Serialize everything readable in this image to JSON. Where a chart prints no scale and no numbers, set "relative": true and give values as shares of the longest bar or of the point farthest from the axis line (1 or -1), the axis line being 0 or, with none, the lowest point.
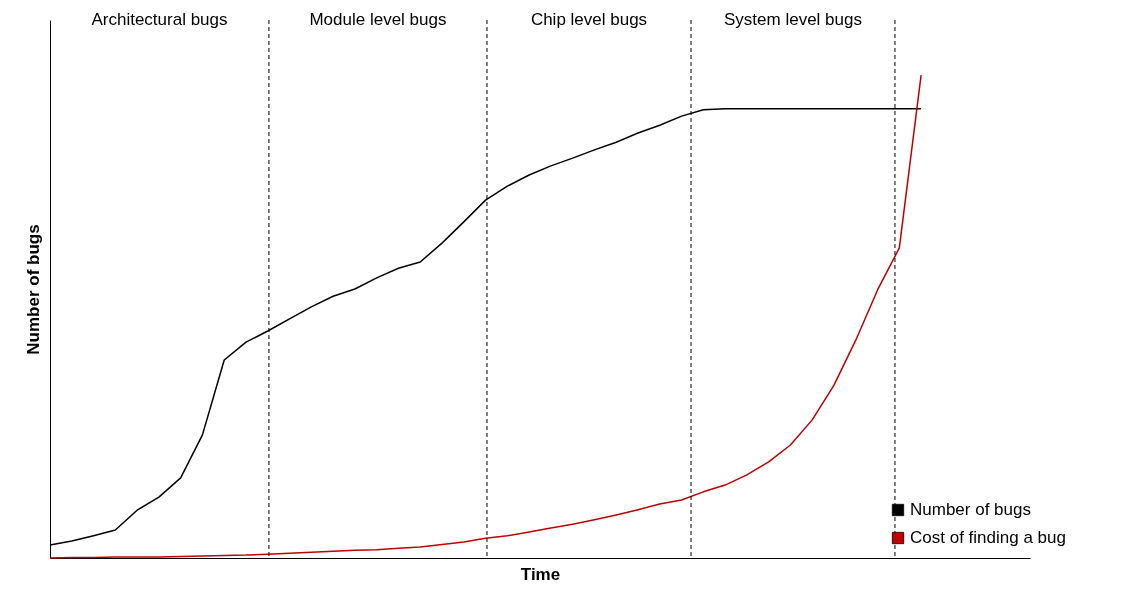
{
  "chart_data": {
    "type": "line",
    "relative": true,
    "xlabel": "Time",
    "ylabel": "Number of bugs",
    "categories": [
      null,
      null,
      null,
      null,
      null,
      null,
      null,
      null,
      null,
      null,
      null,
      null,
      null,
      null,
      null,
      null,
      null,
      null,
      null,
      null,
      null,
      null,
      null,
      null,
      null,
      null,
      null,
      null,
      null,
      null,
      null,
      null,
      null,
      null,
      null,
      null,
      null,
      null,
      null,
      null,
      null,
      null,
      null,
      null,
      null,
      null
    ],
    "series": [
      {
        "name": "Number of bugs",
        "color": "#000000",
        "values": [
          0.027,
          0.035,
          0.046,
          0.058,
          0.099,
          0.126,
          0.166,
          0.255,
          0.41,
          0.447,
          0.47,
          0.495,
          0.52,
          0.542,
          0.557,
          0.58,
          0.6,
          0.613,
          0.652,
          0.696,
          0.741,
          0.77,
          0.793,
          0.812,
          0.828,
          0.845,
          0.861,
          0.88,
          0.896,
          0.915,
          0.928,
          0.93,
          0.93,
          0.93,
          0.93,
          0.93,
          0.93,
          0.93,
          0.93,
          0.93,
          0.93,
          null,
          null,
          null,
          null,
          null
        ]
      },
      {
        "name": "Cost of finding a bug",
        "color": "#c00000",
        "values": [
          0,
          0.001,
          0.001,
          0.002,
          0.002,
          0.002,
          0.003,
          0.004,
          0.005,
          0.006,
          0.008,
          0.01,
          0.012,
          0.014,
          0.016,
          0.017,
          0.02,
          0.023,
          0.028,
          0.033,
          0.041,
          0.046,
          0.054,
          0.062,
          0.07,
          0.079,
          0.089,
          0.1,
          0.112,
          0.12,
          0.137,
          0.151,
          0.172,
          0.199,
          0.234,
          0.286,
          0.358,
          0.451,
          0.555,
          0.642,
          1,
          null,
          null,
          null,
          null,
          null
        ]
      }
    ],
    "annotations": [
      "Architectural bugs",
      "Module level bugs",
      "Chip level bugs",
      "System level bugs"
    ],
    "legend": "bottom right",
    "marker": "none",
    "line_style": "solid"
  }
}
